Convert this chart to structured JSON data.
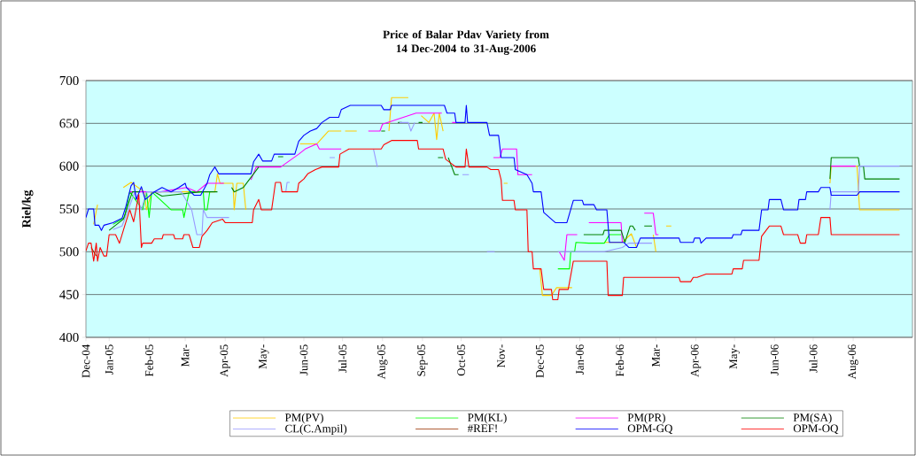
{
  "chart_data": {
    "type": "line",
    "title": "Price of Balar Pdav Variety from 14 Dec-2004 to 31-Aug-2006",
    "ylabel": "Riel/kg",
    "xlim": [
      "2004-12-14",
      "2006-09-16"
    ],
    "ylim": [
      400,
      700
    ],
    "yticks": [
      400,
      450,
      500,
      550,
      600,
      650,
      700
    ],
    "xticks": [
      {
        "value": "2004-12-14",
        "label": "Dec-04"
      },
      {
        "value": "2005-01-01",
        "label": "Jan-05"
      },
      {
        "value": "2005-02-01",
        "label": "Feb-05"
      },
      {
        "value": "2005-03-01",
        "label": "Mar-"
      },
      {
        "value": "2005-04-01",
        "label": "Apr-05"
      },
      {
        "value": "2005-05-01",
        "label": "May-"
      },
      {
        "value": "2005-06-01",
        "label": "Jun-05"
      },
      {
        "value": "2005-07-01",
        "label": "Jul-05"
      },
      {
        "value": "2005-08-01",
        "label": "Aug-05"
      },
      {
        "value": "2005-09-01",
        "label": "Sep-05"
      },
      {
        "value": "2005-10-01",
        "label": "Oct-05"
      },
      {
        "value": "2005-11-01",
        "label": "Nov-"
      },
      {
        "value": "2005-12-01",
        "label": "Dec-05"
      },
      {
        "value": "2006-01-01",
        "label": "Jan-06"
      },
      {
        "value": "2006-02-01",
        "label": "Feb-06"
      },
      {
        "value": "2006-03-01",
        "label": "Mar-"
      },
      {
        "value": "2006-04-01",
        "label": "Apr-06"
      },
      {
        "value": "2006-05-01",
        "label": "May-"
      },
      {
        "value": "2006-06-01",
        "label": "Jun-06"
      },
      {
        "value": "2006-07-01",
        "label": "Jul-06"
      },
      {
        "value": "2006-08-01",
        "label": "Aug-06"
      }
    ],
    "grid": "y",
    "legend": "bottom",
    "series": [
      {
        "name": "PM(PV)",
        "color": "#ffcc00",
        "x": [
          "2004-12-20",
          "2004-12-23",
          "2004-12-24",
          "2005-01-12",
          "2005-01-18",
          "2005-01-28",
          "2005-01-30",
          "2005-02-03",
          "2005-03-24",
          "2005-03-26",
          "2005-03-28",
          "2005-04-07",
          "2005-04-08",
          "2005-04-10",
          "2005-04-15",
          "2005-04-17",
          "2005-04-18",
          "2005-05-29",
          "2005-06-11",
          "2005-06-20",
          "2005-06-30",
          "2005-07-01",
          "2005-07-03",
          "2005-07-12",
          "2005-07-13",
          "2005-08-06",
          "2005-08-08",
          "2005-08-21",
          "2005-08-22",
          "2005-08-31",
          "2005-09-06",
          "2005-09-10",
          "2005-09-12",
          "2005-09-14",
          "2005-09-17",
          "2005-09-18",
          "2005-11-03",
          "2005-11-06",
          "2005-11-07",
          "2005-12-01",
          "2005-12-03",
          "2005-12-10",
          "2005-12-14",
          "2005-12-26",
          "2005-12-27",
          "2006-01-20",
          "2006-02-03",
          "2006-02-10",
          "2006-02-14",
          "2006-02-15",
          "2006-02-27",
          "2006-03-01",
          "2006-03-02",
          "2006-03-09",
          "2006-03-13",
          "2006-03-14",
          "2006-07-14",
          "2006-07-15",
          "2006-08-04",
          "2006-08-06",
          "2006-09-06"
        ],
        "values": [
          532,
          555,
          null,
          575,
          581,
          570,
          549,
          570,
          570,
          591,
          580,
          580,
          549,
          580,
          580,
          549,
          null,
          626,
          626,
          641,
          641,
          null,
          641,
          641,
          null,
          641,
          680,
          680,
          null,
          659,
          651,
          662,
          631,
          662,
          641,
          null,
          580,
          580,
          null,
          480,
          449,
          449,
          458,
          458,
          null,
          511,
          511,
          521,
          505,
          null,
          520,
          500,
          null,
          530,
          530,
          null,
          580,
          600,
          600,
          549,
          549
        ]
      },
      {
        "name": "PM(KL)",
        "color": "#00ff00",
        "x": [
          "2005-01-04",
          "2005-01-13",
          "2005-01-17",
          "2005-01-27",
          "2005-01-30",
          "2005-02-01",
          "2005-02-03",
          "2005-02-18",
          "2005-02-27",
          "2005-02-28",
          "2005-03-04",
          "2005-03-15",
          "2005-03-16",
          "2005-03-18",
          "2005-03-20",
          "2005-03-21",
          "2005-12-15",
          "2005-12-24",
          "2005-12-25",
          "2005-12-28",
          "2005-12-29",
          "2006-01-08",
          "2006-01-20",
          "2006-01-24",
          "2006-02-02"
        ],
        "values": [
          532,
          540,
          570,
          549,
          570,
          540,
          570,
          549,
          549,
          540,
          570,
          570,
          549,
          549,
          570,
          null,
          480,
          480,
          500,
          500,
          511,
          510,
          510,
          520,
          520
        ]
      },
      {
        "name": "PM(PR)",
        "color": "#ff00ff",
        "x": [
          "2005-01-17",
          "2005-01-21",
          "2005-02-10",
          "2005-03-02",
          "2005-03-10",
          "2005-03-18",
          "2005-03-31",
          "2005-04-01",
          "2005-04-21",
          "2005-04-25",
          "2005-05-14",
          "2005-05-28",
          "2005-06-02",
          "2005-06-11",
          "2005-06-13",
          "2005-06-30",
          "2005-07-01",
          "2005-07-21",
          "2005-07-30",
          "2005-08-01",
          "2005-08-27",
          "2005-09-16",
          "2005-09-17",
          "2005-09-24",
          "2005-09-27",
          "2005-09-28",
          "2005-10-26",
          "2005-10-31",
          "2005-11-02",
          "2005-11-13",
          "2005-11-14",
          "2005-11-25",
          "2005-11-26",
          "2005-12-16",
          "2005-12-20",
          "2005-12-22",
          "2005-12-30",
          "2005-12-31",
          "2006-01-08",
          "2006-02-02",
          "2006-02-03",
          "2006-02-04",
          "2006-02-20",
          "2006-02-27",
          "2006-03-01",
          "2006-03-03",
          "2006-03-04",
          "2006-07-14",
          "2006-08-03"
        ],
        "values": [
          570,
          570,
          570,
          575,
          570,
          580,
          580,
          null,
          584,
          599,
          599,
          614,
          620,
          626,
          620,
          620,
          null,
          641,
          641,
          649,
          662,
          662,
          null,
          651,
          651,
          null,
          610,
          610,
          620,
          620,
          590,
          590,
          null,
          500,
          490,
          520,
          520,
          null,
          534,
          534,
          511,
          null,
          545,
          545,
          520,
          520,
          null,
          600,
          600
        ]
      },
      {
        "name": "PM(SA)",
        "color": "#008000",
        "x": [
          "2005-01-01",
          "2005-01-06",
          "2005-01-12",
          "2005-01-19",
          "2005-01-25",
          "2005-01-26",
          "2005-02-05",
          "2005-02-11",
          "2005-03-13",
          "2005-03-26",
          "2005-03-27",
          "2005-04-06",
          "2005-04-08",
          "2005-04-15",
          "2005-04-27",
          "2005-04-28",
          "2005-05-12",
          "2005-05-16",
          "2005-05-17",
          "2005-07-31",
          "2005-08-03",
          "2005-08-04",
          "2005-08-13",
          "2005-08-16",
          "2005-08-17",
          "2005-08-29",
          "2005-09-01",
          "2005-09-02",
          "2005-09-13",
          "2005-09-17",
          "2005-09-18",
          "2005-09-21",
          "2005-09-26",
          "2005-09-29",
          "2005-09-30",
          "2006-01-04",
          "2006-01-19",
          "2006-01-20",
          "2006-02-02",
          "2006-02-05",
          "2006-02-09",
          "2006-02-11",
          "2006-02-13",
          "2006-02-14",
          "2006-02-20",
          "2006-02-26",
          "2006-02-27",
          "2006-07-14",
          "2006-07-15",
          "2006-08-05",
          "2006-08-06",
          "2006-08-09",
          "2006-08-10",
          "2006-09-06"
        ],
        "values": [
          525,
          531,
          538,
          570,
          570,
          null,
          570,
          565,
          570,
          570,
          null,
          575,
          570,
          575,
          599,
          null,
          611,
          611,
          null,
          641,
          641,
          null,
          651,
          651,
          null,
          651,
          651,
          null,
          610,
          610,
          null,
          610,
          590,
          590,
          null,
          520,
          520,
          525,
          525,
          511,
          530,
          530,
          525,
          null,
          530,
          530,
          null,
          585,
          610,
          610,
          600,
          600,
          585,
          585
        ]
      },
      {
        "name": "CL(C.Ampil)",
        "color": "#9999ff",
        "x": [
          "2005-01-04",
          "2005-01-11",
          "2005-01-21",
          "2005-01-26",
          "2005-01-30",
          "2005-02-06",
          "2005-02-26",
          "2005-03-06",
          "2005-03-10",
          "2005-03-14",
          "2005-03-15",
          "2005-03-18",
          "2005-04-04",
          "2005-04-05",
          "2005-05-18",
          "2005-05-19",
          "2005-05-21",
          "2005-05-22",
          "2005-06-21",
          "2005-06-25",
          "2005-06-26",
          "2005-07-25",
          "2005-07-28",
          "2005-07-29",
          "2005-08-14",
          "2005-08-21",
          "2005-08-23",
          "2005-08-26",
          "2005-08-27",
          "2005-10-02",
          "2005-10-07",
          "2005-10-08",
          "2005-10-21",
          "2005-10-27",
          "2005-10-28",
          "2005-12-15",
          "2006-01-04",
          "2006-01-20",
          "2006-02-03",
          "2006-02-08",
          "2006-02-20",
          "2006-02-26",
          "2006-02-27",
          "2006-07-14",
          "2006-07-15",
          "2006-08-05",
          "2006-08-06",
          "2006-09-06"
        ],
        "values": [
          526,
          530,
          570,
          549,
          570,
          570,
          570,
          549,
          520,
          520,
          549,
          540,
          540,
          null,
          570,
          581,
          581,
          null,
          610,
          610,
          null,
          620,
          599,
          null,
          651,
          651,
          641,
          651,
          null,
          590,
          590,
          null,
          500,
          500,
          null,
          500,
          500,
          500,
          505,
          510,
          510,
          510,
          null,
          549,
          570,
          570,
          600,
          600
        ]
      },
      {
        "name": "#REF!",
        "color": "#993300",
        "x": [
          "2004-12-18",
          "2004-12-20",
          "2004-12-22"
        ],
        "values": [
          505,
          500,
          495
        ]
      },
      {
        "name": "OPM-GQ",
        "color": "#0000ff",
        "x": [
          "2004-12-14",
          "2004-12-16",
          "2004-12-20",
          "2004-12-21",
          "2004-12-24",
          "2004-12-26",
          "2004-12-28",
          "2005-01-04",
          "2005-01-11",
          "2005-01-14",
          "2005-01-18",
          "2005-01-20",
          "2005-01-22",
          "2005-01-26",
          "2005-01-29",
          "2005-02-05",
          "2005-02-11",
          "2005-02-18",
          "2005-02-24",
          "2005-03-01",
          "2005-03-02",
          "2005-03-08",
          "2005-03-13",
          "2005-03-18",
          "2005-03-20",
          "2005-03-24",
          "2005-03-27",
          "2005-04-21",
          "2005-04-23",
          "2005-04-27",
          "2005-04-30",
          "2005-05-07",
          "2005-05-09",
          "2005-05-25",
          "2005-05-28",
          "2005-06-01",
          "2005-06-06",
          "2005-06-11",
          "2005-06-15",
          "2005-06-21",
          "2005-06-28",
          "2005-06-30",
          "2005-07-07",
          "2005-07-31",
          "2005-08-02",
          "2005-08-07",
          "2005-08-08",
          "2005-09-18",
          "2005-09-20",
          "2005-09-26",
          "2005-09-27",
          "2005-10-04",
          "2005-10-05",
          "2005-10-06",
          "2005-10-21",
          "2005-10-23",
          "2005-10-30",
          "2005-11-01",
          "2005-11-11",
          "2005-11-12",
          "2005-11-21",
          "2005-11-25",
          "2005-11-26",
          "2005-12-02",
          "2005-12-04",
          "2005-12-13",
          "2005-12-22",
          "2005-12-27",
          "2006-01-03",
          "2006-01-04",
          "2006-01-12",
          "2006-01-14",
          "2006-01-22",
          "2006-01-24",
          "2006-02-04",
          "2006-02-08",
          "2006-02-14",
          "2006-02-17",
          "2006-03-19",
          "2006-03-20",
          "2006-03-30",
          "2006-03-31",
          "2006-04-04",
          "2006-04-05",
          "2006-04-09",
          "2006-04-29",
          "2006-04-30",
          "2006-05-06",
          "2006-05-07",
          "2006-05-20",
          "2006-05-22",
          "2006-05-27",
          "2006-05-28",
          "2006-06-06",
          "2006-06-08",
          "2006-06-19",
          "2006-06-20",
          "2006-06-25",
          "2006-06-26",
          "2006-07-05",
          "2006-07-07",
          "2006-07-14",
          "2006-07-15",
          "2006-08-04",
          "2006-08-06",
          "2006-09-06"
        ],
        "values": [
          540,
          550,
          550,
          531,
          531,
          525,
          531,
          534,
          539,
          553,
          577,
          581,
          561,
          576,
          561,
          570,
          575,
          570,
          575,
          580,
          575,
          566,
          566,
          580,
          590,
          599,
          591,
          591,
          605,
          614,
          606,
          606,
          614,
          614,
          629,
          636,
          641,
          644,
          651,
          657,
          657,
          666,
          671,
          671,
          666,
          666,
          671,
          671,
          662,
          662,
          651,
          651,
          671,
          651,
          651,
          636,
          636,
          610,
          610,
          596,
          590,
          580,
          570,
          570,
          546,
          534,
          534,
          560,
          560,
          555,
          555,
          549,
          549,
          511,
          511,
          505,
          505,
          516,
          516,
          511,
          511,
          516,
          516,
          510,
          516,
          516,
          520,
          520,
          525,
          525,
          549,
          549,
          561,
          561,
          549,
          549,
          561,
          561,
          570,
          570,
          575,
          575,
          566,
          566,
          570,
          570
        ]
      },
      {
        "name": "OPM-OQ",
        "color": "#ff0000",
        "x": [
          "2004-12-14",
          "2004-12-16",
          "2004-12-18",
          "2004-12-20",
          "2004-12-22",
          "2004-12-23",
          "2004-12-25",
          "2004-12-28",
          "2004-12-30",
          "2005-01-01",
          "2005-01-06",
          "2005-01-09",
          "2005-01-13",
          "2005-01-17",
          "2005-01-20",
          "2005-01-24",
          "2005-01-26",
          "2005-01-27",
          "2005-02-03",
          "2005-02-05",
          "2005-02-11",
          "2005-02-12",
          "2005-02-20",
          "2005-02-21",
          "2005-02-27",
          "2005-02-28",
          "2005-03-04",
          "2005-03-07",
          "2005-03-12",
          "2005-03-14",
          "2005-03-18",
          "2005-03-22",
          "2005-03-30",
          "2005-04-01",
          "2005-04-22",
          "2005-04-23",
          "2005-04-27",
          "2005-04-29",
          "2005-05-07",
          "2005-05-10",
          "2005-05-14",
          "2005-05-15",
          "2005-05-27",
          "2005-05-28",
          "2005-06-01",
          "2005-06-04",
          "2005-06-10",
          "2005-06-15",
          "2005-06-28",
          "2005-06-29",
          "2005-07-06",
          "2005-07-31",
          "2005-08-02",
          "2005-08-08",
          "2005-08-28",
          "2005-08-29",
          "2005-09-17",
          "2005-09-19",
          "2005-09-27",
          "2005-10-04",
          "2005-10-05",
          "2005-10-07",
          "2005-10-21",
          "2005-10-24",
          "2005-10-30",
          "2005-11-01",
          "2005-11-02",
          "2005-11-11",
          "2005-11-12",
          "2005-11-21",
          "2005-11-22",
          "2005-11-25",
          "2005-11-26",
          "2005-12-02",
          "2005-12-04",
          "2005-12-10",
          "2005-12-11",
          "2005-12-15",
          "2005-12-16",
          "2005-12-23",
          "2005-12-27",
          "2006-01-22",
          "2006-01-23",
          "2006-02-03",
          "2006-02-04",
          "2006-03-19",
          "2006-03-20",
          "2006-03-28",
          "2006-03-30",
          "2006-04-02",
          "2006-04-09",
          "2006-04-29",
          "2006-04-30",
          "2006-05-07",
          "2006-05-08",
          "2006-05-20",
          "2006-05-22",
          "2006-05-28",
          "2006-06-06",
          "2006-06-08",
          "2006-06-19",
          "2006-06-21",
          "2006-06-25",
          "2006-06-26",
          "2006-07-05",
          "2006-07-07",
          "2006-07-14",
          "2006-07-15",
          "2006-09-06"
        ],
        "values": [
          501,
          510,
          510,
          489,
          510,
          489,
          505,
          495,
          495,
          520,
          520,
          510,
          530,
          549,
          535,
          567,
          505,
          510,
          510,
          515,
          515,
          520,
          520,
          515,
          515,
          520,
          520,
          505,
          505,
          518,
          525,
          534,
          538,
          534,
          534,
          549,
          561,
          549,
          549,
          581,
          581,
          570,
          570,
          580,
          585,
          591,
          596,
          599,
          599,
          614,
          620,
          620,
          625,
          630,
          630,
          620,
          620,
          608,
          599,
          599,
          620,
          599,
          599,
          596,
          596,
          584,
          560,
          560,
          549,
          549,
          500,
          500,
          480,
          480,
          456,
          456,
          444,
          444,
          456,
          456,
          489,
          489,
          449,
          449,
          470,
          470,
          465,
          465,
          470,
          470,
          474,
          474,
          480,
          480,
          490,
          490,
          518,
          530,
          530,
          520,
          520,
          510,
          510,
          520,
          520,
          540,
          540,
          520,
          520
        ]
      }
    ]
  }
}
